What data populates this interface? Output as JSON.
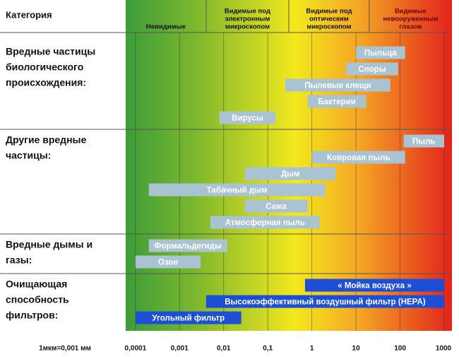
{
  "chart_data": {
    "type": "range_bar",
    "header": "Категория",
    "unit_note": "1мкм=0,001 мм",
    "xscale": "log",
    "xlim": [
      6e-05,
      1500
    ],
    "xticks": [
      {
        "value": 0.0001,
        "label": "0,0001"
      },
      {
        "value": 0.001,
        "label": "0,001"
      },
      {
        "value": 0.01,
        "label": "0,01"
      },
      {
        "value": 0.1,
        "label": "0,1"
      },
      1,
      10,
      100,
      1000
    ],
    "grid": true,
    "zones": [
      {
        "label": [
          "Невидимые"
        ],
        "from": 6e-05,
        "to": 0.004
      },
      {
        "label": [
          "Видимые под",
          "электронным",
          "микроскопом"
        ],
        "from": 0.004,
        "to": 0.3
      },
      {
        "label": [
          "Видимые под",
          "оптическим",
          "микроскопом"
        ],
        "from": 0.3,
        "to": 20
      },
      {
        "label": [
          "Видимые",
          "невооруженным",
          "глазом"
        ],
        "from": 20,
        "to": 1500
      }
    ],
    "groups": [
      {
        "label": [
          "Вредные частицы",
          "биологического",
          "происхождения:"
        ],
        "color": "#a9c3d3",
        "bars": [
          {
            "name": "Пыльца",
            "values": [
              10,
              130
            ]
          },
          {
            "name": "Споры",
            "values": [
              6,
              90
            ]
          },
          {
            "name": "Пылевые клещи",
            "values": [
              0.25,
              60
            ]
          },
          {
            "name": "Бактерии",
            "values": [
              0.8,
              17
            ]
          },
          {
            "name": "Вирусы",
            "values": [
              0.008,
              0.15
            ]
          }
        ]
      },
      {
        "label": [
          "Другие вредные",
          "частицы:"
        ],
        "color": "#a9c3d3",
        "bars": [
          {
            "name": "Пыль",
            "values": [
              120,
              1000
            ]
          },
          {
            "name": "Ковровая пыль",
            "values": [
              1,
              130
            ]
          },
          {
            "name": "Дым",
            "values": [
              0.03,
              3.5
            ]
          },
          {
            "name": "Табачный дым",
            "values": [
              0.0002,
              2
            ]
          },
          {
            "name": "Сажа",
            "values": [
              0.03,
              0.8
            ]
          },
          {
            "name": "Атмосферная пыль",
            "values": [
              0.005,
              1.5
            ]
          }
        ]
      },
      {
        "label": [
          "Вредные дымы и",
          "газы:"
        ],
        "color": "#a9c3d3",
        "bars": [
          {
            "name": "Формальдегиды",
            "values": [
              0.0002,
              0.012
            ]
          },
          {
            "name": "Озон",
            "values": [
              0.0001,
              0.003
            ]
          }
        ]
      },
      {
        "label": [
          "Очищающая",
          "способность",
          "фильтров:"
        ],
        "color": "#1d4fd6",
        "bars": [
          {
            "name": "« Мойка воздуха »",
            "values": [
              0.7,
              1000
            ]
          },
          {
            "name": "Высокоэффективный воздушный фильтр (HEPA)",
            "values": [
              0.004,
              1000
            ]
          },
          {
            "name": "Угольный фильтр",
            "values": [
              0.0001,
              0.025
            ]
          }
        ]
      }
    ]
  }
}
